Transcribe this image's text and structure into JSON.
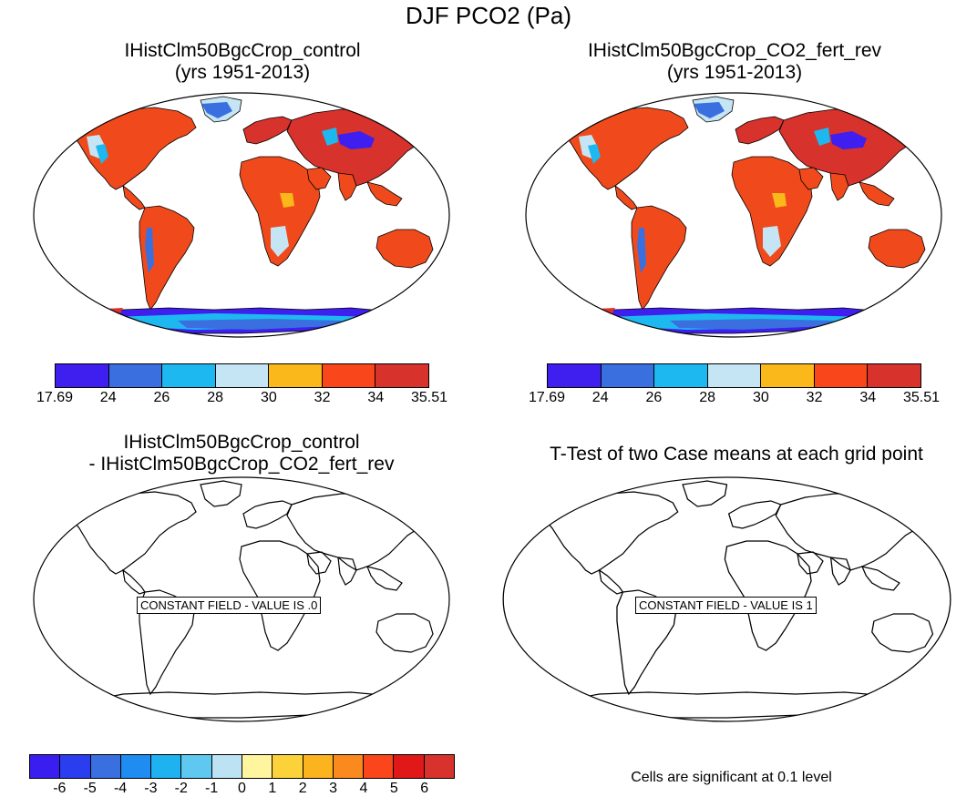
{
  "figure": {
    "title": "DJF PCO2 (Pa)",
    "panel_tl": {
      "title_line1": "IHistClm50BgcCrop_control",
      "title_line2": "(yrs 1951-2013)"
    },
    "panel_tr": {
      "title_line1": "IHistClm50BgcCrop_CO2_fert_rev",
      "title_line2": "(yrs 1951-2013)"
    },
    "panel_bl": {
      "title_line1": "IHistClm50BgcCrop_control",
      "title_line2": "- IHistClm50BgcCrop_CO2_fert_rev",
      "constant_field_text": "CONSTANT FIELD - VALUE IS .0"
    },
    "panel_br": {
      "title_line1": "T-Test of two Case means at each grid point",
      "constant_field_text": "CONSTANT FIELD - VALUE IS 1"
    },
    "significance_note": "Cells are significant at 0.1 level"
  },
  "colorbar_top": {
    "labels": [
      "17.69",
      "24",
      "26",
      "28",
      "30",
      "32",
      "34",
      "35.51"
    ],
    "colors": [
      "#3f1ef0",
      "#3a6fe0",
      "#1eb8f0",
      "#c5e5f5",
      "#fbb81a",
      "#f9461a",
      "#d8322c"
    ]
  },
  "colorbar_bottom": {
    "labels": [
      "-6",
      "-5",
      "-4",
      "-3",
      "-2",
      "-1",
      "0",
      "1",
      "2",
      "3",
      "4",
      "5",
      "6"
    ],
    "colors": [
      "#3a1ef0",
      "#2a3ef0",
      "#3a6fe0",
      "#1e8cf0",
      "#1eb2f0",
      "#5ec8f0",
      "#bde2f3",
      "#fff59e",
      "#fcd23a",
      "#fbb31e",
      "#fb8a1e",
      "#fa461a",
      "#e01818",
      "#d8322c"
    ]
  },
  "map_colors": {
    "land_main": "#f04a1c",
    "land_dark": "#d8322c",
    "cool_light": "#c5e5f5",
    "cool_mid": "#1eb8f0",
    "cool_blue": "#3a6fe0",
    "cool_deep": "#3f1ef0",
    "warm_yellow": "#fbb81a"
  }
}
